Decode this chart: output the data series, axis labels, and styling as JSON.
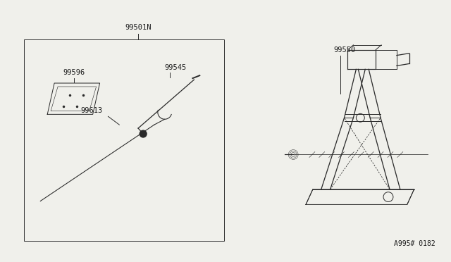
{
  "bg_color": "#f0f0eb",
  "line_color": "#2a2a2a",
  "text_color": "#1a1a1a",
  "fig_width": 6.4,
  "fig_height": 3.72,
  "dpi": 100,
  "watermark": "A995# 0182"
}
